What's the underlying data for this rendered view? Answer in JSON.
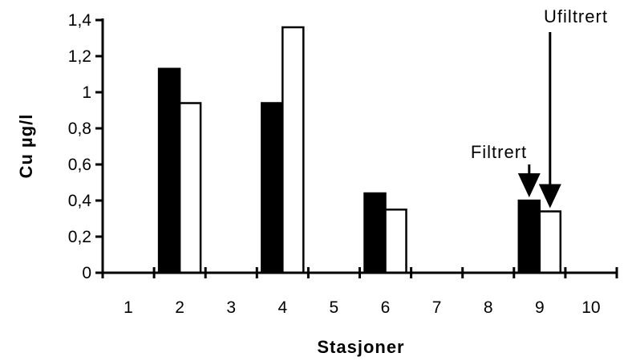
{
  "chart_data": {
    "type": "bar",
    "xlabel": "Stasjoner",
    "ylabel": "Cu  µg/l",
    "ylim": [
      0,
      1.4
    ],
    "yticks": [
      "0",
      "0,2",
      "0,4",
      "0,6",
      "0,8",
      "1",
      "1,2",
      "1,4"
    ],
    "categories": [
      "1",
      "2",
      "3",
      "4",
      "5",
      "6",
      "7",
      "8",
      "9",
      "10"
    ],
    "series": [
      {
        "name": "Filtrert",
        "color": "#000000",
        "values": [
          null,
          1.13,
          null,
          0.94,
          null,
          0.44,
          null,
          null,
          0.4,
          null
        ]
      },
      {
        "name": "Ufiltrert",
        "color": "#ffffff",
        "values": [
          null,
          0.94,
          null,
          1.36,
          null,
          0.35,
          null,
          null,
          0.34,
          null
        ]
      }
    ],
    "annotations": [
      {
        "text": "Filtrert",
        "series": "Filtrert",
        "category": "9"
      },
      {
        "text": "Ufiltrert",
        "series": "Ufiltrert",
        "category": "9"
      }
    ],
    "grid": false,
    "legend": "none"
  }
}
